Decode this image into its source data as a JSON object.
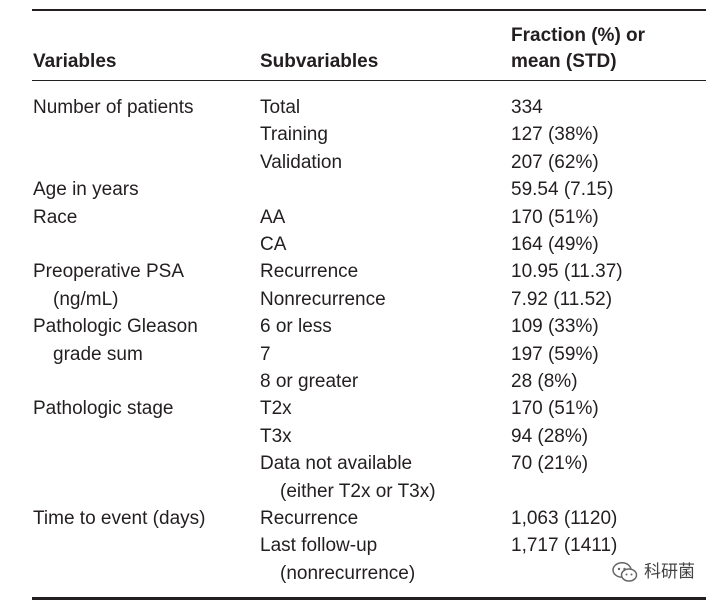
{
  "headers": {
    "variables": "Variables",
    "subvariables": "Subvariables",
    "fraction_line1": "Fraction (%) or",
    "fraction_line2": "mean (STD)"
  },
  "rows": [
    {
      "variable": "Number of patients",
      "sub": "Total",
      "value": "334"
    },
    {
      "variable": "",
      "sub": "Training",
      "value": "127 (38%)"
    },
    {
      "variable": "",
      "sub": "Validation",
      "value": "207 (62%)"
    },
    {
      "variable": "Age in years",
      "sub": "",
      "value": "59.54 (7.15)"
    },
    {
      "variable": "Race",
      "sub": "AA",
      "value": "170 (51%)"
    },
    {
      "variable": "",
      "sub": "CA",
      "value": "164 (49%)"
    },
    {
      "variable": "Preoperative PSA",
      "sub": "Recurrence",
      "value": "10.95 (11.37)"
    },
    {
      "variable": "(ng/mL)",
      "sub": "Nonrecurrence",
      "value": "7.92 (11.52)"
    },
    {
      "variable": "Pathologic Gleason",
      "sub": "6 or less",
      "value": "109 (33%)"
    },
    {
      "variable": "grade sum",
      "sub": "7",
      "value": "197 (59%)"
    },
    {
      "variable": "",
      "sub": "8 or greater",
      "value": "28 (8%)"
    },
    {
      "variable": "Pathologic stage",
      "sub": "T2x",
      "value": "170 (51%)"
    },
    {
      "variable": "",
      "sub": "T3x",
      "value": "94 (28%)"
    },
    {
      "variable": "",
      "sub": "Data not available",
      "value": "70 (21%)"
    },
    {
      "variable": "",
      "sub": "(either T2x or T3x)",
      "value": ""
    },
    {
      "variable": "Time to event (days)",
      "sub": "Recurrence",
      "value": "1,063 (1120)"
    },
    {
      "variable": "",
      "sub": "Last follow-up",
      "value": "1,717 (1411)"
    },
    {
      "variable": "",
      "sub": "(nonrecurrence)",
      "value": ""
    }
  ],
  "watermark": {
    "text": "科研菌",
    "icon": "wechat-icon"
  }
}
